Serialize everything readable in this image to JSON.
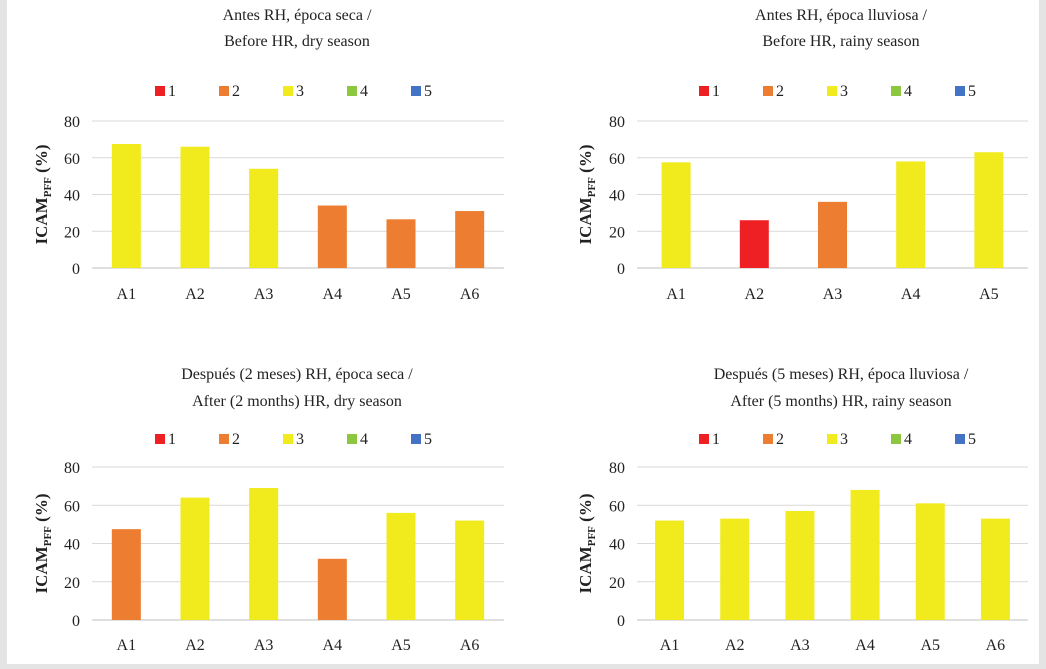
{
  "chart_data": [
    {
      "type": "bar",
      "title": [
        "Antes RH, época seca /",
        "Before HR, dry season"
      ],
      "ylabel_main": "ICAM",
      "ylabel_sub": "PFF",
      "ylabel_tail": " (%)",
      "ylim": [
        0,
        80
      ],
      "yticks": [
        0,
        20,
        40,
        60,
        80
      ],
      "grid": true,
      "legend_position": "top",
      "legend": [
        {
          "label": "1",
          "color": "#ee2024"
        },
        {
          "label": "2",
          "color": "#ed7d31"
        },
        {
          "label": "3",
          "color": "#f1ea1c"
        },
        {
          "label": "4",
          "color": "#8dc63f"
        },
        {
          "label": "5",
          "color": "#4472c4"
        }
      ],
      "categories": [
        "A1",
        "A2",
        "A3",
        "A4",
        "A5",
        "A6"
      ],
      "values": [
        67.5,
        66,
        54,
        34,
        26.5,
        31
      ],
      "classes": [
        3,
        3,
        3,
        2,
        2,
        2
      ]
    },
    {
      "type": "bar",
      "title": [
        "Antes RH, época lluviosa /",
        "Before HR, rainy season"
      ],
      "ylabel_main": "ICAM",
      "ylabel_sub": "PFF",
      "ylabel_tail": " (%)",
      "ylim": [
        0,
        80
      ],
      "yticks": [
        0,
        20,
        40,
        60,
        80
      ],
      "grid": true,
      "legend_position": "top",
      "legend": [
        {
          "label": "1",
          "color": "#ee2024"
        },
        {
          "label": "2",
          "color": "#ed7d31"
        },
        {
          "label": "3",
          "color": "#f1ea1c"
        },
        {
          "label": "4",
          "color": "#8dc63f"
        },
        {
          "label": "5",
          "color": "#4472c4"
        }
      ],
      "categories": [
        "A1",
        "A2",
        "A3",
        "A4",
        "A5"
      ],
      "values": [
        57.5,
        26,
        36,
        58,
        63
      ],
      "classes": [
        3,
        1,
        2,
        3,
        3
      ]
    },
    {
      "type": "bar",
      "title": [
        "Después (2 meses) RH, época seca /",
        "After (2 months) HR, dry season"
      ],
      "ylabel_main": "ICAM",
      "ylabel_sub": "PFF",
      "ylabel_tail": " (%)",
      "ylim": [
        0,
        80
      ],
      "yticks": [
        0,
        20,
        40,
        60,
        80
      ],
      "grid": true,
      "legend_position": "top",
      "legend": [
        {
          "label": "1",
          "color": "#ee2024"
        },
        {
          "label": "2",
          "color": "#ed7d31"
        },
        {
          "label": "3",
          "color": "#f1ea1c"
        },
        {
          "label": "4",
          "color": "#8dc63f"
        },
        {
          "label": "5",
          "color": "#4472c4"
        }
      ],
      "categories": [
        "A1",
        "A2",
        "A3",
        "A4",
        "A5",
        "A6"
      ],
      "values": [
        47.5,
        64,
        69,
        32,
        56,
        52
      ],
      "classes": [
        2,
        3,
        3,
        2,
        3,
        3
      ]
    },
    {
      "type": "bar",
      "title": [
        "Después (5 meses) RH, época lluviosa /",
        "After (5 months) HR, rainy season"
      ],
      "ylabel_main": "ICAM",
      "ylabel_sub": "PFF",
      "ylabel_tail": " (%)",
      "ylim": [
        0,
        80
      ],
      "yticks": [
        0,
        20,
        40,
        60,
        80
      ],
      "grid": true,
      "legend_position": "top",
      "legend": [
        {
          "label": "1",
          "color": "#ee2024"
        },
        {
          "label": "2",
          "color": "#ed7d31"
        },
        {
          "label": "3",
          "color": "#f1ea1c"
        },
        {
          "label": "4",
          "color": "#8dc63f"
        },
        {
          "label": "5",
          "color": "#4472c4"
        }
      ],
      "categories": [
        "A1",
        "A2",
        "A3",
        "A4",
        "A5",
        "A6"
      ],
      "values": [
        52,
        53,
        57,
        68,
        61,
        53
      ],
      "classes": [
        3,
        3,
        3,
        3,
        3,
        3
      ]
    }
  ]
}
